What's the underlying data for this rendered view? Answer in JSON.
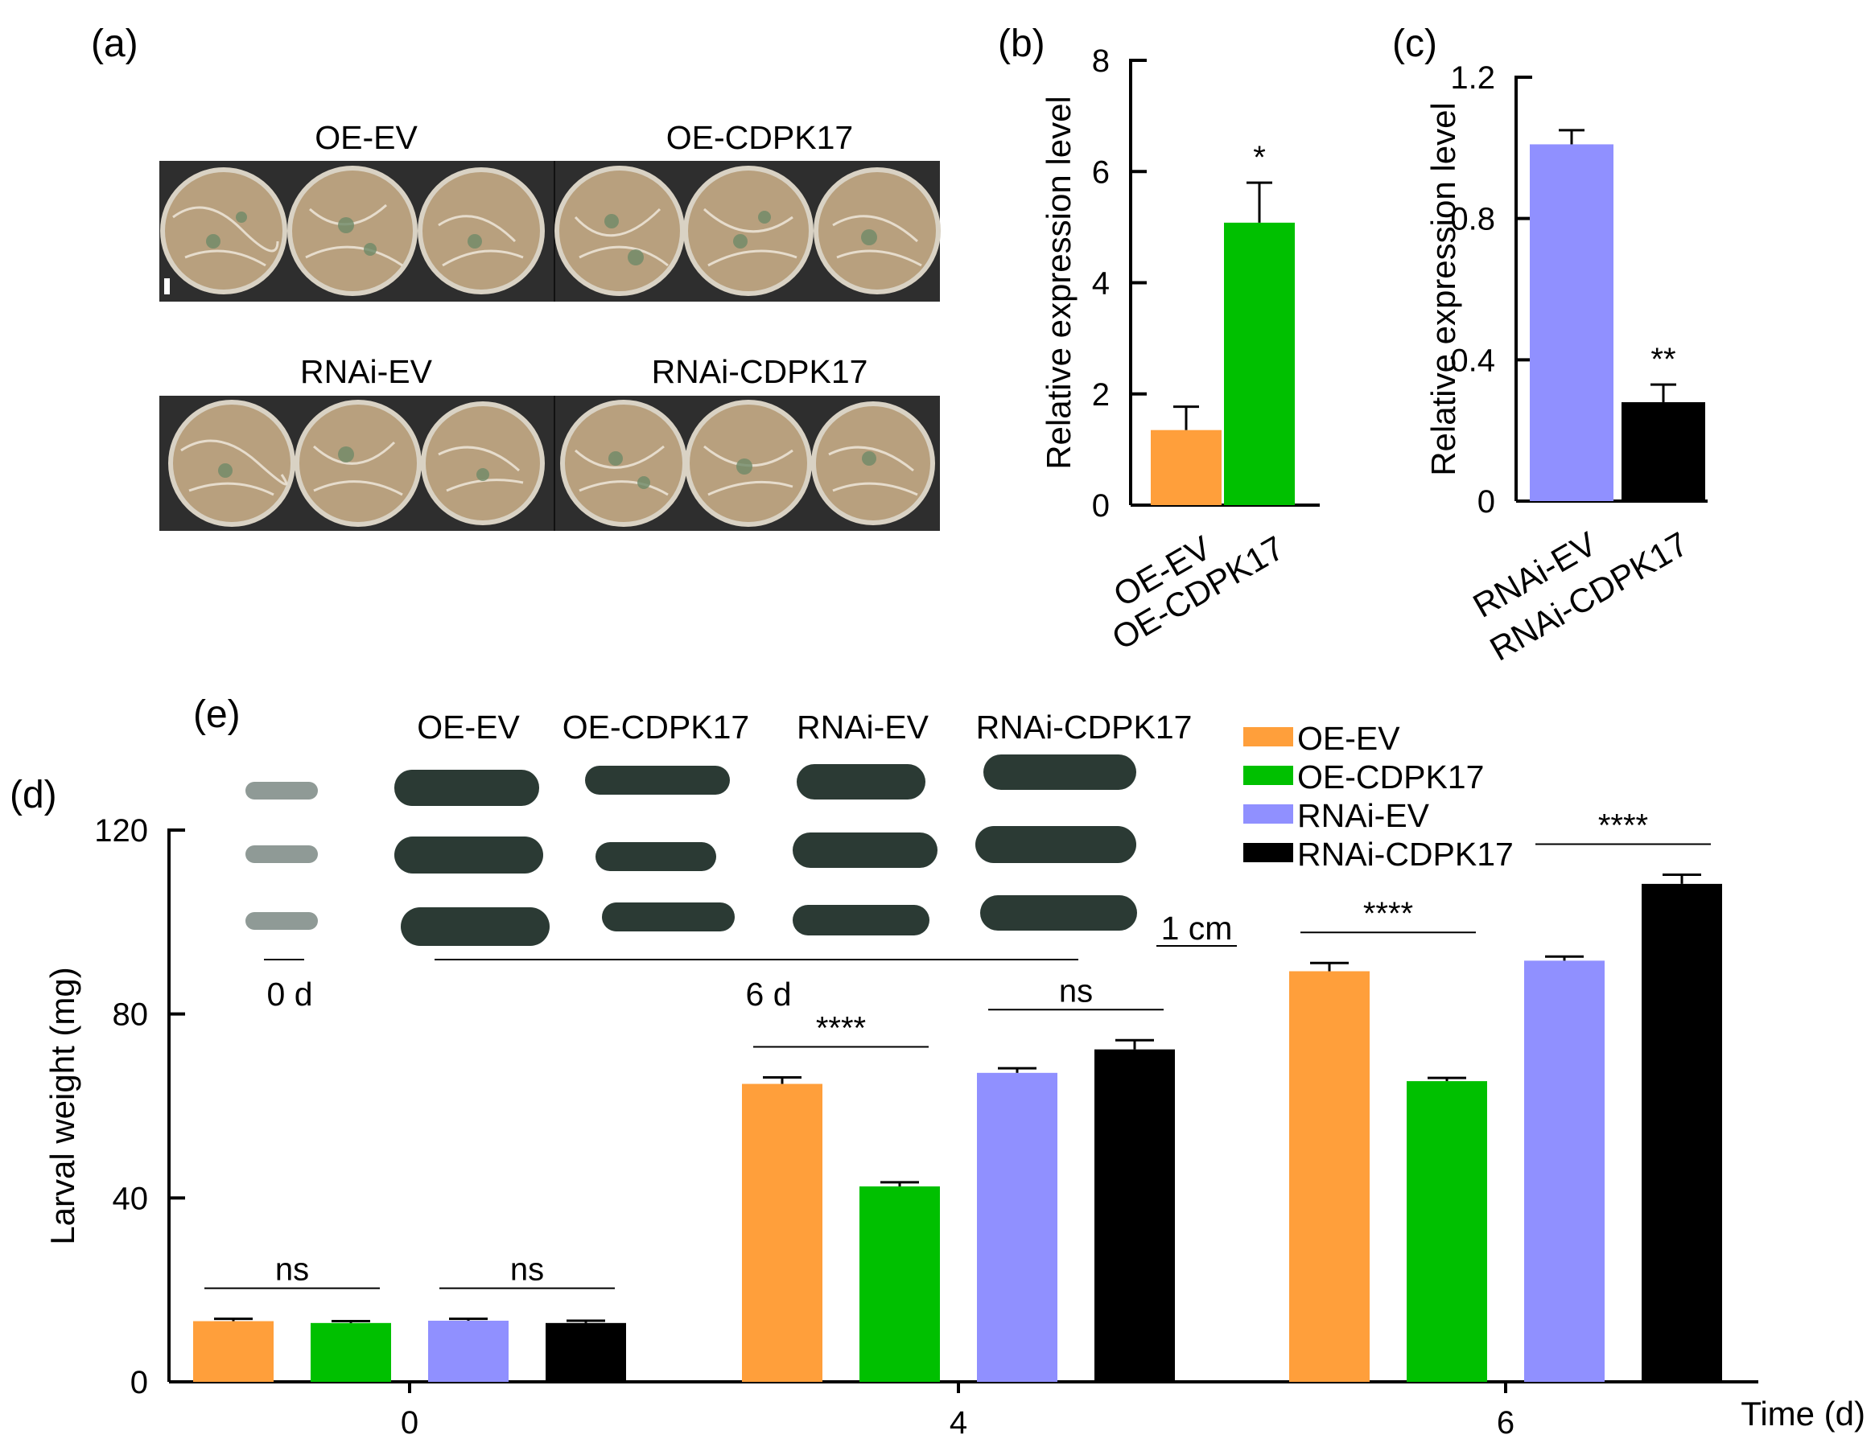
{
  "panels": {
    "a": "(a)",
    "b": "(b)",
    "c": "(c)",
    "d": "(d)",
    "e": "(e)"
  },
  "photo_a": {
    "top_left": "OE-EV",
    "top_right": "OE-CDPK17",
    "bottom_left": "RNAi-EV",
    "bottom_right": "RNAi-CDPK17"
  },
  "photo_e": {
    "headers": [
      "OE-EV",
      "OE-CDPK17",
      "RNAi-EV",
      "RNAi-CDPK17"
    ],
    "day0": "0 d",
    "day6": "6 d",
    "scale": "1 cm"
  },
  "colors": {
    "OE-EV": "#ff9f3b",
    "OE-CDPK17": "#00c000",
    "RNAi-EV": "#9090ff",
    "RNAi-CDPK17": "#000000"
  },
  "chart_data": [
    {
      "id": "b",
      "type": "bar",
      "categories": [
        "OE-EV",
        "OE-CDPK17"
      ],
      "values": [
        1.35,
        5.08
      ],
      "errors": [
        0.42,
        0.72
      ],
      "significance": [
        "",
        "*"
      ],
      "ylabel": "Relative expression level",
      "ylim": [
        0,
        8
      ],
      "yticks": [
        0,
        2,
        4,
        6,
        8
      ],
      "ytick_labels": [
        "0",
        "2",
        "4",
        "6",
        "8"
      ]
    },
    {
      "id": "c",
      "type": "bar",
      "categories": [
        "RNAi-EV",
        "RNAi-CDPK17"
      ],
      "values": [
        1.01,
        0.28
      ],
      "errors": [
        0.04,
        0.05
      ],
      "significance": [
        "",
        "**"
      ],
      "ylabel": "Relative expression level",
      "ylim": [
        0,
        1.2
      ],
      "yticks": [
        0,
        0.4,
        0.8,
        1.2
      ],
      "ytick_labels": [
        "0",
        "0.4",
        "0.8",
        "1.2"
      ]
    },
    {
      "id": "d",
      "type": "bar",
      "categories": [
        "0",
        "4",
        "6"
      ],
      "series": [
        {
          "name": "OE-EV",
          "values": [
            13.2,
            64.8,
            89.3
          ],
          "errors": [
            0.5,
            1.4,
            1.8
          ]
        },
        {
          "name": "OE-CDPK17",
          "values": [
            12.8,
            42.5,
            65.4
          ],
          "errors": [
            0.4,
            0.9,
            0.7
          ]
        },
        {
          "name": "RNAi-EV",
          "values": [
            13.3,
            67.2,
            91.6
          ],
          "errors": [
            0.4,
            1.0,
            0.9
          ]
        },
        {
          "name": "RNAi-CDPK17",
          "values": [
            12.8,
            72.3,
            108.3
          ],
          "errors": [
            0.5,
            2.0,
            2.0
          ]
        }
      ],
      "comparisons": [
        {
          "group": 0,
          "pair": "OE",
          "label": "ns"
        },
        {
          "group": 0,
          "pair": "RNAi",
          "label": "ns"
        },
        {
          "group": 1,
          "pair": "OE",
          "label": "****"
        },
        {
          "group": 1,
          "pair": "RNAi",
          "label": "ns"
        },
        {
          "group": 2,
          "pair": "OE",
          "label": "****"
        },
        {
          "group": 2,
          "pair": "RNAi",
          "label": "****"
        }
      ],
      "ylabel": "Larval weight (mg)",
      "xlabel": "Time (d)",
      "ylim": [
        0,
        120
      ],
      "yticks": [
        0,
        40,
        80,
        120
      ],
      "ytick_labels": [
        "0",
        "40",
        "80",
        "120"
      ],
      "legend": [
        "OE-EV",
        "OE-CDPK17",
        "RNAi-EV",
        "RNAi-CDPK17"
      ],
      "legend_position": "top-right"
    }
  ]
}
